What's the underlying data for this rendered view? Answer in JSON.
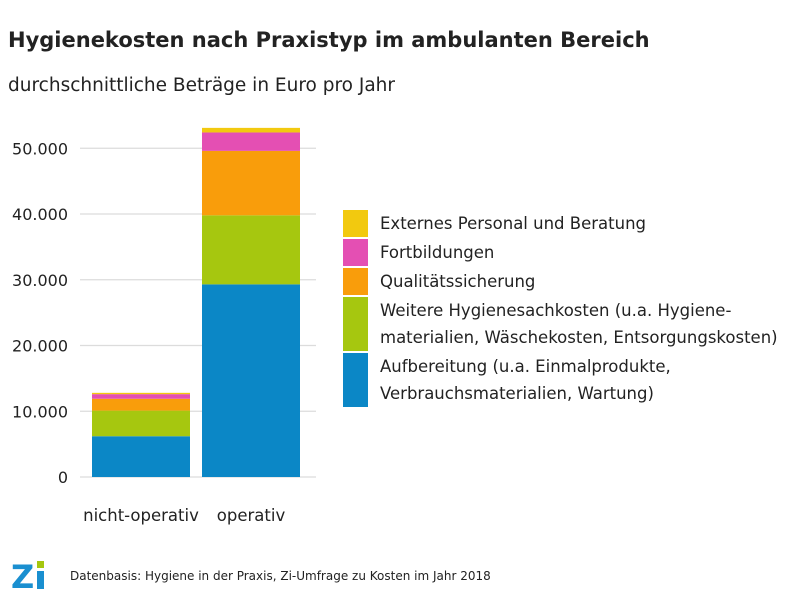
{
  "header": {
    "title": "Hygienekosten nach Praxistyp im ambulanten Bereich",
    "subtitle": "durchschnittliche Beträge in Euro pro Jahr"
  },
  "footer": {
    "source": "Datenbasis: Hygiene in der Praxis, Zi-Umfrage zu Kosten im Jahr 2018",
    "logo_text": "Zi"
  },
  "chart_data": {
    "type": "bar",
    "stacked": true,
    "title": "Hygienekosten nach Praxistyp im ambulanten Bereich",
    "subtitle": "durchschnittliche Beträge in Euro pro Jahr",
    "xlabel": "",
    "ylabel": "",
    "ylim": [
      0,
      55000
    ],
    "yticks": [
      0,
      10000,
      20000,
      30000,
      40000,
      50000
    ],
    "ytick_labels": [
      "0",
      "10.000",
      "20.000",
      "30.000",
      "40.000",
      "50.000"
    ],
    "grid": true,
    "legend_position": "right",
    "categories": [
      "nicht-operativ",
      "operativ"
    ],
    "series": [
      {
        "name": "Aufbereitung (u.a. Einmalprodukte, Verbrauchsmaterialien, Wartung)",
        "legend_lines": [
          "Aufbereitung (u.a. Einmalprodukte,",
          "Verbrauchsmaterialien, Wartung)"
        ],
        "color": "#0b87c6",
        "values": [
          6200,
          29300
        ]
      },
      {
        "name": "Weitere Hygienesachkosten (u.a. Hygienematerialien, Wäschekosten, Entsorgungskosten)",
        "legend_lines": [
          "Weitere Hygienesachkosten (u.a. Hygiene-",
          "materialien, Wäschekosten, Entsorgungskosten)"
        ],
        "color": "#a6c70f",
        "values": [
          3900,
          10500
        ]
      },
      {
        "name": "Qualitätssicherung",
        "legend_lines": [
          "Qualitätssicherung"
        ],
        "color": "#f99d0b",
        "values": [
          1800,
          9800
        ]
      },
      {
        "name": "Fortbildungen",
        "legend_lines": [
          "Fortbildungen"
        ],
        "color": "#e44fb3",
        "values": [
          700,
          2800
        ]
      },
      {
        "name": "Externes Personal und Beratung",
        "legend_lines": [
          "Externes Personal und Beratung"
        ],
        "color": "#f2c90f",
        "values": [
          200,
          700
        ]
      }
    ]
  }
}
